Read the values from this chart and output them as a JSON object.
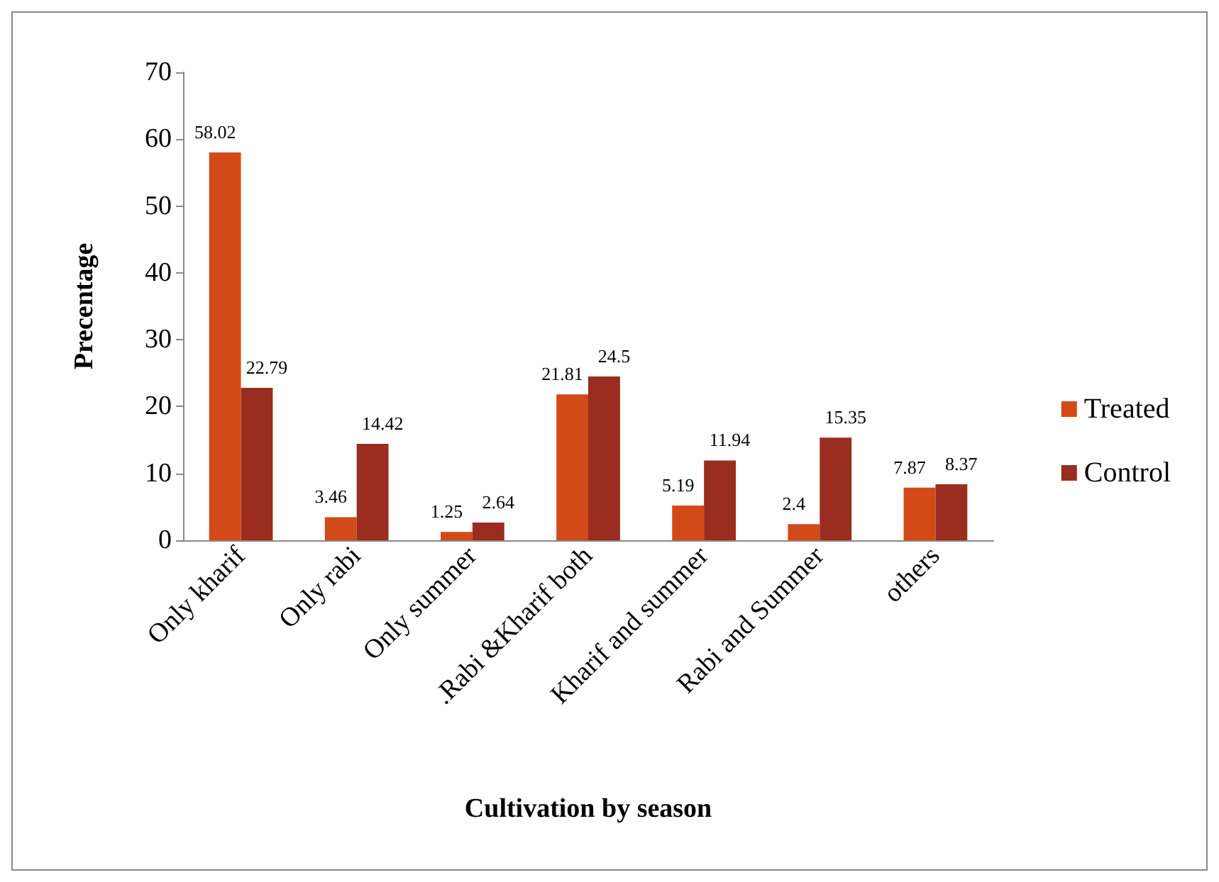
{
  "chart_data": {
    "type": "bar",
    "xlabel": "Cultivation by season",
    "ylabel": "Precentage",
    "categories": [
      "Only kharif",
      "Only rabi",
      "Only summer",
      ".Rabi &Kharif both",
      "Kharif and summer",
      "Rabi and Summer",
      "others"
    ],
    "series": [
      {
        "name": "Treated",
        "color": "#d24a18",
        "values": [
          58.02,
          3.46,
          1.25,
          21.81,
          5.19,
          2.4,
          7.87
        ]
      },
      {
        "name": "Control",
        "color": "#9b2c20",
        "values": [
          22.79,
          14.42,
          2.64,
          24.5,
          11.94,
          15.35,
          8.37
        ]
      }
    ],
    "ylim": [
      0,
      70
    ],
    "yticks": [
      0,
      10,
      20,
      30,
      40,
      50,
      60,
      70
    ],
    "grid": false,
    "legend": "right",
    "data_labels": true
  }
}
